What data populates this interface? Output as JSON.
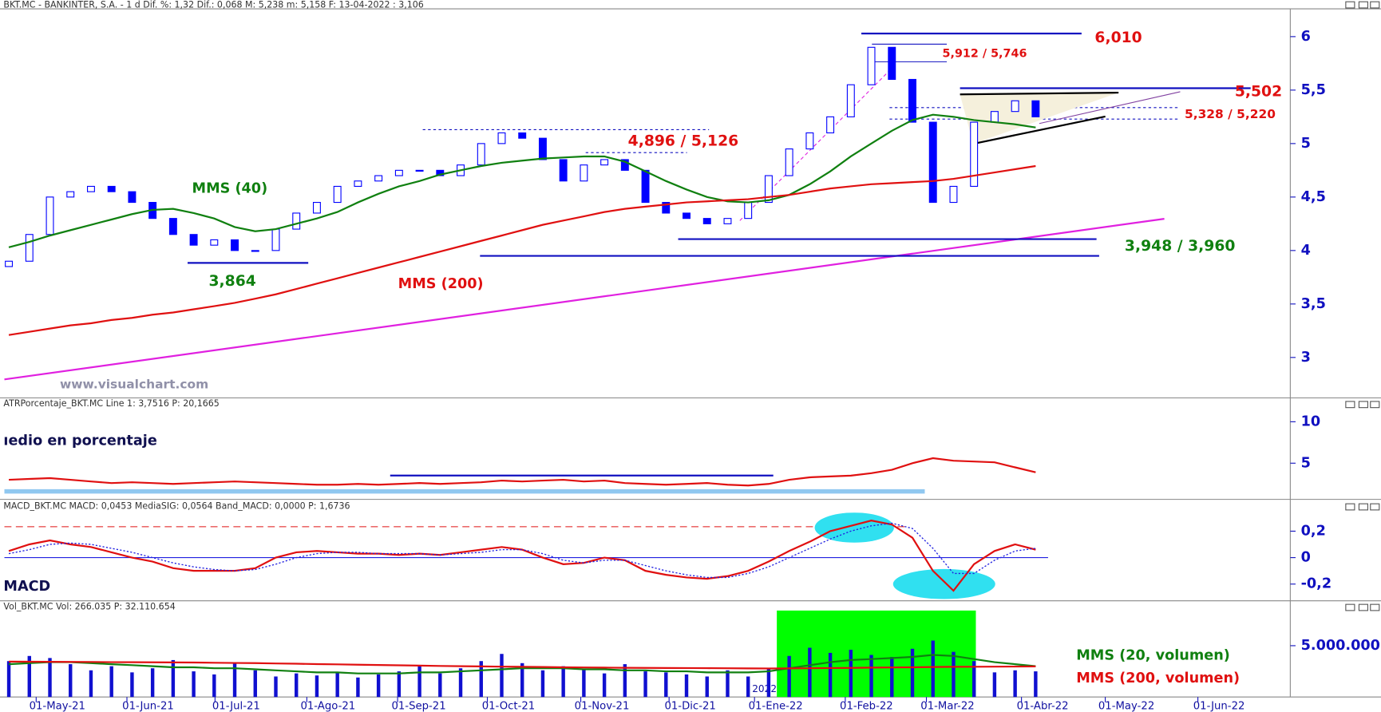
{
  "chart_data": [
    {
      "type": "candlestick",
      "header": "BKT.MC - BANKINTER, S.A. -  1 d  Dif. %: 1,32  Dif.: 0,068  M: 5,238  m: 5,158  F: 13-04-2022  : 3,106",
      "x": [
        0,
        1,
        2,
        3,
        4,
        5,
        6,
        7,
        8,
        9,
        10,
        11,
        12,
        13,
        14,
        15,
        16,
        17,
        18,
        19,
        20,
        21,
        22,
        23,
        24,
        25,
        26,
        27,
        28,
        29,
        30,
        31,
        32,
        33,
        34,
        35,
        36,
        37,
        38,
        39,
        40,
        41,
        42,
        43,
        44,
        45,
        46,
        47,
        48,
        49,
        50
      ],
      "open": [
        3.85,
        3.9,
        4.15,
        4.5,
        4.55,
        4.6,
        4.55,
        4.45,
        4.3,
        4.15,
        4.05,
        4.1,
        4.0,
        4.0,
        4.2,
        4.35,
        4.45,
        4.6,
        4.65,
        4.7,
        4.75,
        4.75,
        4.7,
        4.8,
        5.0,
        5.1,
        5.05,
        4.85,
        4.65,
        4.8,
        4.85,
        4.75,
        4.45,
        4.35,
        4.3,
        4.25,
        4.3,
        4.45,
        4.7,
        4.95,
        5.1,
        5.25,
        5.55,
        5.9,
        5.6,
        5.2,
        4.45,
        4.6,
        5.2,
        5.3,
        5.4
      ],
      "close": [
        3.9,
        4.15,
        4.5,
        4.55,
        4.6,
        4.55,
        4.45,
        4.3,
        4.15,
        4.05,
        4.1,
        4.0,
        4.0,
        4.2,
        4.35,
        4.45,
        4.6,
        4.65,
        4.7,
        4.75,
        4.75,
        4.7,
        4.8,
        5.0,
        5.1,
        5.05,
        4.85,
        4.65,
        4.8,
        4.85,
        4.75,
        4.45,
        4.35,
        4.3,
        4.25,
        4.3,
        4.45,
        4.7,
        4.95,
        5.1,
        5.25,
        5.55,
        5.9,
        5.6,
        5.2,
        4.45,
        4.6,
        5.2,
        5.3,
        5.4,
        5.25
      ],
      "color": "#0000ff",
      "series": [
        {
          "name": "MMS (40)",
          "color": "#108010",
          "values": [
            4.03,
            4.08,
            4.14,
            4.19,
            4.24,
            4.29,
            4.34,
            4.38,
            4.39,
            4.35,
            4.3,
            4.22,
            4.18,
            4.2,
            4.25,
            4.3,
            4.36,
            4.45,
            4.53,
            4.6,
            4.65,
            4.71,
            4.75,
            4.79,
            4.82,
            4.84,
            4.86,
            4.87,
            4.88,
            4.88,
            4.83,
            4.74,
            4.65,
            4.57,
            4.5,
            4.46,
            4.45,
            4.47,
            4.52,
            4.62,
            4.74,
            4.88,
            5.0,
            5.12,
            5.22,
            5.27,
            5.25,
            5.22,
            5.2,
            5.18,
            5.15
          ]
        },
        {
          "name": "MMS (200)",
          "color": "#e01010",
          "values": [
            3.21,
            3.24,
            3.27,
            3.3,
            3.32,
            3.35,
            3.37,
            3.4,
            3.42,
            3.45,
            3.48,
            3.51,
            3.55,
            3.59,
            3.64,
            3.69,
            3.74,
            3.79,
            3.84,
            3.89,
            3.94,
            3.99,
            4.04,
            4.09,
            4.14,
            4.19,
            4.24,
            4.28,
            4.32,
            4.36,
            4.39,
            4.41,
            4.43,
            4.45,
            4.46,
            4.47,
            4.48,
            4.5,
            4.52,
            4.55,
            4.58,
            4.6,
            4.62,
            4.63,
            4.64,
            4.65,
            4.67,
            4.7,
            4.73,
            4.76,
            4.79
          ]
        }
      ],
      "annotations": [
        "6,010",
        "5,912 / 5,746",
        "5,502",
        "5,328 / 5,220",
        "4,896 / 5,126",
        "3,948 / 3,960",
        "3,864",
        "www.visualchart.com",
        "2022"
      ],
      "xlim": [
        -0.43,
        62.4
      ],
      "ylim": [
        2.63,
        6.26
      ],
      "yticks": [
        3,
        {
          "value": 3.5,
          "label": "3,5"
        },
        4,
        {
          "value": 4.5,
          "label": "4,5"
        },
        5,
        {
          "value": 5.5,
          "label": "5,5"
        },
        6
      ]
    },
    {
      "type": "line",
      "header": "ATRPorcentaje_BKT.MC  Line 1: 3,7516  P: 20,1665",
      "title": "ıedio en porcentaje",
      "x": [
        0,
        1,
        2,
        3,
        4,
        5,
        6,
        7,
        8,
        9,
        10,
        11,
        12,
        13,
        14,
        15,
        16,
        17,
        18,
        19,
        20,
        21,
        22,
        23,
        24,
        25,
        26,
        27,
        28,
        29,
        30,
        31,
        32,
        33,
        34,
        35,
        36,
        37,
        38,
        39,
        40,
        41,
        42,
        43,
        44,
        45,
        46,
        47,
        48,
        49,
        50
      ],
      "series": [
        {
          "color": "#e01010",
          "values": [
            3.0,
            3.1,
            3.2,
            3.0,
            2.8,
            2.6,
            2.7,
            2.6,
            2.5,
            2.6,
            2.7,
            2.8,
            2.7,
            2.6,
            2.5,
            2.4,
            2.4,
            2.5,
            2.4,
            2.5,
            2.6,
            2.5,
            2.6,
            2.7,
            2.9,
            2.8,
            2.9,
            3.0,
            2.8,
            2.9,
            2.6,
            2.5,
            2.4,
            2.5,
            2.6,
            2.4,
            2.3,
            2.5,
            3.0,
            3.3,
            3.4,
            3.5,
            3.8,
            4.2,
            5.0,
            5.6,
            5.3,
            5.2,
            5.1,
            4.5,
            3.9
          ]
        }
      ],
      "xlim": [
        -0.43,
        62.4
      ],
      "ylim": [
        0.74,
        12.77
      ],
      "yticks": [
        5,
        10
      ]
    },
    {
      "type": "line",
      "header": "MACD_BKT.MC  MACD: 0,0453  MediaSIG: 0,0564  Band_MACD: 0,0000  P: 1,6736",
      "title": "MACD",
      "x": [
        0,
        1,
        2,
        3,
        4,
        5,
        6,
        7,
        8,
        9,
        10,
        11,
        12,
        13,
        14,
        15,
        16,
        17,
        18,
        19,
        20,
        21,
        22,
        23,
        24,
        25,
        26,
        27,
        28,
        29,
        30,
        31,
        32,
        33,
        34,
        35,
        36,
        37,
        38,
        39,
        40,
        41,
        42,
        43,
        44,
        45,
        46,
        47,
        48,
        49,
        50
      ],
      "series": [
        {
          "color": "#e01010",
          "values": [
            0.05,
            0.1,
            0.13,
            0.1,
            0.08,
            0.04,
            0.0,
            -0.03,
            -0.08,
            -0.1,
            -0.1,
            -0.1,
            -0.08,
            0.0,
            0.04,
            0.05,
            0.04,
            0.03,
            0.03,
            0.02,
            0.03,
            0.02,
            0.04,
            0.06,
            0.08,
            0.06,
            0.0,
            -0.05,
            -0.04,
            0.0,
            -0.02,
            -0.1,
            -0.13,
            -0.15,
            -0.16,
            -0.14,
            -0.1,
            -0.03,
            0.05,
            0.12,
            0.2,
            0.24,
            0.28,
            0.25,
            0.15,
            -0.1,
            -0.25,
            -0.05,
            0.05,
            0.1,
            0.06
          ]
        },
        {
          "color": "#2020e0",
          "style": "dotted",
          "values": [
            0.03,
            0.06,
            0.1,
            0.11,
            0.1,
            0.07,
            0.04,
            0.0,
            -0.04,
            -0.07,
            -0.09,
            -0.1,
            -0.09,
            -0.05,
            0.0,
            0.03,
            0.04,
            0.04,
            0.03,
            0.03,
            0.03,
            0.02,
            0.03,
            0.04,
            0.06,
            0.06,
            0.03,
            -0.02,
            -0.04,
            -0.02,
            -0.02,
            -0.06,
            -0.1,
            -0.13,
            -0.15,
            -0.15,
            -0.12,
            -0.07,
            0.0,
            0.07,
            0.14,
            0.2,
            0.24,
            0.26,
            0.22,
            0.07,
            -0.12,
            -0.12,
            -0.02,
            0.05,
            0.07
          ]
        }
      ],
      "xlim": [
        -0.43,
        62.4
      ],
      "ylim": [
        -0.32,
        0.427
      ],
      "yticks": [
        {
          "value": -0.2,
          "label": "-0,2"
        },
        0,
        {
          "value": 0.2,
          "label": "0,2"
        }
      ]
    },
    {
      "type": "bar",
      "header": "Vol_BKT.MC  Vol: 266.035  P: 32.110.654",
      "x": [
        0,
        1,
        2,
        3,
        4,
        5,
        6,
        7,
        8,
        9,
        10,
        11,
        12,
        13,
        14,
        15,
        16,
        17,
        18,
        19,
        20,
        21,
        22,
        23,
        24,
        25,
        26,
        27,
        28,
        29,
        30,
        31,
        32,
        33,
        34,
        35,
        36,
        37,
        38,
        39,
        40,
        41,
        42,
        43,
        44,
        45,
        46,
        47,
        48,
        49,
        50
      ],
      "values": [
        3500000,
        4000000,
        3800000,
        3200000,
        2600000,
        3000000,
        2400000,
        2800000,
        3600000,
        2500000,
        2200000,
        3400000,
        2600000,
        2000000,
        2300000,
        2100000,
        2400000,
        1900000,
        2200000,
        2500000,
        3000000,
        2300000,
        2800000,
        3500000,
        4200000,
        3300000,
        2600000,
        3000000,
        2700000,
        2300000,
        3200000,
        2500000,
        2400000,
        2200000,
        2000000,
        2600000,
        2000000,
        2800000,
        4000000,
        4800000,
        4300000,
        4600000,
        4100000,
        3900000,
        4700000,
        5500000,
        4400000,
        3500000,
        2400000,
        2600000,
        2500000
      ],
      "color": "#1010d0",
      "series": [
        {
          "name": "MMS (20, volumen)",
          "color": "#108010",
          "values": [
            3200000,
            3300000,
            3400000,
            3400000,
            3300000,
            3200000,
            3100000,
            3000000,
            2900000,
            2900000,
            2800000,
            2800000,
            2700000,
            2600000,
            2500000,
            2400000,
            2400000,
            2300000,
            2300000,
            2300000,
            2400000,
            2400000,
            2500000,
            2600000,
            2700000,
            2800000,
            2800000,
            2800000,
            2700000,
            2700000,
            2600000,
            2600000,
            2500000,
            2500000,
            2400000,
            2400000,
            2400000,
            2500000,
            2800000,
            3100000,
            3400000,
            3600000,
            3700000,
            3800000,
            3900000,
            4100000,
            4000000,
            3700000,
            3400000,
            3200000,
            3000000
          ]
        },
        {
          "name": "MMS (200, volumen)",
          "color": "#e01010",
          "values": [
            3450000,
            3440000,
            3430000,
            3420000,
            3410000,
            3400000,
            3390000,
            3380000,
            3370000,
            3360000,
            3340000,
            3320000,
            3300000,
            3270000,
            3240000,
            3210000,
            3180000,
            3150000,
            3120000,
            3090000,
            3060000,
            3030000,
            3000000,
            2980000,
            2960000,
            2940000,
            2920000,
            2900000,
            2880000,
            2860000,
            2850000,
            2840000,
            2830000,
            2820000,
            2810000,
            2800000,
            2790000,
            2780000,
            2790000,
            2800000,
            2820000,
            2840000,
            2860000,
            2880000,
            2900000,
            2920000,
            2940000,
            2950000,
            2960000,
            2970000,
            2980000
          ]
        }
      ],
      "xlim": [
        -0.43,
        62.4
      ],
      "ylim": [
        0,
        9200000
      ],
      "yticks": [
        {
          "value": 5000000,
          "label": "5.000.000"
        }
      ],
      "xticks": [
        {
          "value": 2.36,
          "label": "01-May-21"
        },
        {
          "value": 6.78,
          "label": "01-Jun-21"
        },
        {
          "value": 11.07,
          "label": "01-Jul-21"
        },
        {
          "value": 15.54,
          "label": "01-Ago-21"
        },
        {
          "value": 19.96,
          "label": "01-Sep-21"
        },
        {
          "value": 24.33,
          "label": "01-Oct-21"
        },
        {
          "value": 28.88,
          "label": "01-Nov-21"
        },
        {
          "value": 33.18,
          "label": "01-Dic-21"
        },
        {
          "value": 37.34,
          "label": "01-Ene-22"
        },
        {
          "value": 41.76,
          "label": "01-Feb-22"
        },
        {
          "value": 45.71,
          "label": "01-Mar-22"
        },
        {
          "value": 50.34,
          "label": "01-Abr-22"
        },
        {
          "value": 54.42,
          "label": "01-May-22"
        },
        {
          "value": 58.93,
          "label": "01-Jun-22"
        }
      ]
    }
  ]
}
